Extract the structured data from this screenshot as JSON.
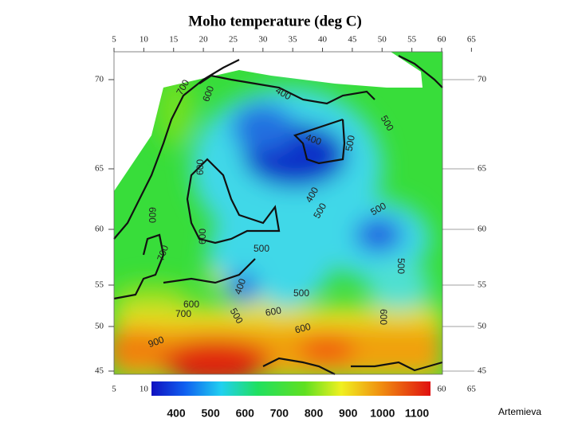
{
  "title": "Moho temperature (deg C)",
  "top_axis": [
    5,
    10,
    15,
    20,
    25,
    30,
    35,
    40,
    45,
    50,
    55,
    60,
    65
  ],
  "lat_left": [
    70,
    65,
    60,
    55,
    50,
    45
  ],
  "lat_right": [
    70,
    65,
    60,
    55,
    50,
    45
  ],
  "bottom_axis": [
    5,
    10,
    60,
    65
  ],
  "colorbar_ticks": [
    400,
    500,
    600,
    700,
    800,
    900,
    1000,
    1100
  ],
  "contour_labels": [
    "700",
    "600",
    "400",
    "500",
    "500",
    "400",
    "600",
    "600",
    "400",
    "500",
    "500",
    "600",
    "700",
    "500",
    "500",
    "400",
    "500",
    "600",
    "700",
    "600",
    "500",
    "600",
    "600",
    "900"
  ],
  "credit": "Artemieva"
}
